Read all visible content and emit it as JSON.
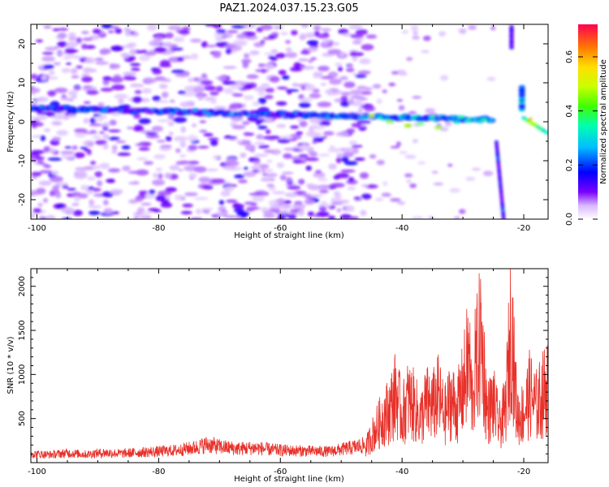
{
  "title": "PAZ1.2024.037.15.23.G05",
  "chart_data": [
    {
      "type": "heatmap",
      "xlabel": "Height of straight line (km)",
      "ylabel": "Frequency (Hz)",
      "xlim": [
        -101,
        -16
      ],
      "ylim": [
        -25,
        25
      ],
      "xticks": [
        -100,
        -80,
        -60,
        -40,
        -20
      ],
      "yticks": [
        -20,
        -10,
        0,
        10,
        20
      ],
      "colorbar": {
        "label": "Normalized spectral amplitude",
        "range": [
          0.0,
          0.72
        ],
        "ticks": [
          0.0,
          0.2,
          0.4,
          0.6
        ]
      },
      "features": [
        {
          "x_range": [
            -101,
            -25
          ],
          "freq_center_start": 3.5,
          "freq_center_end": 0.5,
          "description_value": "main tone band"
        },
        {
          "x_range": [
            -25,
            -22.5
          ],
          "freq_range": [
            -25,
            -5
          ]
        },
        {
          "x_range": [
            -22.5,
            -21
          ],
          "freq_range": [
            23,
            25
          ]
        },
        {
          "x_range": [
            -21.5,
            -19.5
          ],
          "freq_range": [
            3,
            9
          ]
        },
        {
          "x_range": [
            -20,
            -16
          ],
          "freq_center_start": 1,
          "freq_center_end": -3
        }
      ]
    },
    {
      "type": "line",
      "xlabel": "Height of straight line (km)",
      "ylabel": "SNR (10 * v/v)",
      "xlim": [
        -101,
        -16
      ],
      "ylim": [
        0,
        2200
      ],
      "xticks": [
        -100,
        -80,
        -60,
        -40,
        -20
      ],
      "yticks": [
        500,
        1000,
        1500,
        2000
      ],
      "series": [
        {
          "color": "#e8312a",
          "x": [
            -101,
            -98,
            -95,
            -92,
            -89,
            -86,
            -83,
            -80,
            -77,
            -74,
            -72,
            -70,
            -67,
            -64,
            -61,
            -58,
            -55,
            -52,
            -49,
            -46,
            -45,
            -44,
            -43,
            -42,
            -41,
            -40,
            -39,
            -38,
            -37,
            -36,
            -35,
            -34,
            -33,
            -32,
            -31,
            -30,
            -29,
            -28.5,
            -28,
            -27,
            -26,
            -25,
            -24,
            -23,
            -22.5,
            -22,
            -21.5,
            -21,
            -20,
            -19,
            -18,
            -17,
            -16
          ],
          "y": [
            110,
            100,
            120,
            105,
            125,
            115,
            130,
            140,
            155,
            190,
            230,
            200,
            175,
            185,
            160,
            150,
            145,
            140,
            180,
            220,
            400,
            550,
            700,
            800,
            1050,
            700,
            950,
            850,
            650,
            900,
            850,
            1000,
            700,
            950,
            800,
            1100,
            1600,
            900,
            1400,
            1900,
            750,
            900,
            550,
            800,
            1500,
            2200,
            1200,
            700,
            750,
            1050,
            850,
            1000,
            1200
          ]
        }
      ]
    }
  ]
}
